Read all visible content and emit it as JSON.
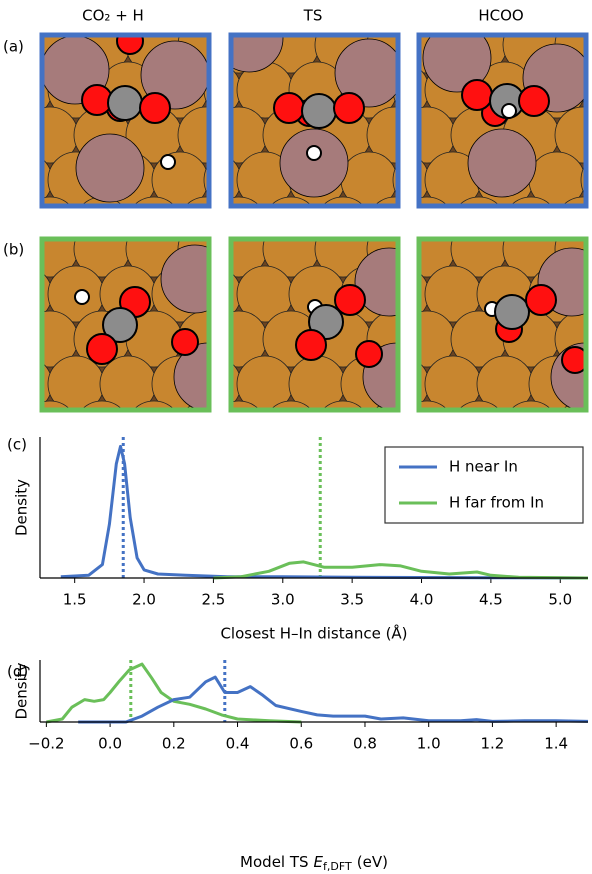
{
  "panels": {
    "columns": [
      "CO₂ + H",
      "TS",
      "HCOO"
    ],
    "rows": [
      "(a)",
      "(b)"
    ]
  },
  "chart_data": [
    {
      "type": "line",
      "panel_label": "(c)",
      "ylabel": "Density",
      "xlabel": "Closest H–In distance (Å)",
      "xlim": [
        1.25,
        5.2
      ],
      "ylim": [
        0,
        1.05
      ],
      "xticks": [
        1.5,
        {
          "value": 2,
          "label": "2.0"
        },
        2.5,
        {
          "value": 3,
          "label": "3.0"
        },
        3.5,
        {
          "value": 4,
          "label": "4.0"
        },
        4.5,
        {
          "value": 5,
          "label": "5.0"
        }
      ],
      "legend": "upper right",
      "series": [
        {
          "name": "H near In",
          "color": "#4472c4",
          "x": [
            1.4,
            1.6,
            1.7,
            1.75,
            1.8,
            1.83,
            1.86,
            1.9,
            1.95,
            2.0,
            2.1,
            2.3,
            2.6,
            3.0,
            3.5,
            4.5,
            5.2
          ],
          "values": [
            0.01,
            0.02,
            0.1,
            0.4,
            0.85,
            0.98,
            0.85,
            0.45,
            0.15,
            0.06,
            0.03,
            0.02,
            0.01,
            0.01,
            0.005,
            0.002,
            0
          ]
        },
        {
          "name": "H far from In",
          "color": "#6abf59",
          "x": [
            2.5,
            2.7,
            2.9,
            3.05,
            3.15,
            3.3,
            3.5,
            3.7,
            3.85,
            4.0,
            4.2,
            4.4,
            4.5,
            4.7,
            5.2
          ],
          "values": [
            0,
            0.01,
            0.05,
            0.11,
            0.12,
            0.08,
            0.08,
            0.1,
            0.09,
            0.05,
            0.03,
            0.045,
            0.02,
            0.005,
            0
          ]
        }
      ],
      "vlines": [
        {
          "x": 1.85,
          "color": "#4472c4"
        },
        {
          "x": 3.27,
          "color": "#6abf59"
        }
      ]
    },
    {
      "type": "line",
      "panel_label": "(d)",
      "ylabel": "Density",
      "xlabel": {
        "text": "Model TS",
        "symbol": "E",
        "subscript": "f,DFT",
        "unit": "(eV)"
      },
      "xlim": [
        -0.22,
        1.5
      ],
      "ylim": [
        0,
        1.05
      ],
      "xticks": [
        {
          "value": -0.2,
          "label": "−0.2"
        },
        {
          "value": 0,
          "label": "0.0"
        },
        0.2,
        0.4,
        0.6,
        0.8,
        {
          "value": 1,
          "label": "1.0"
        },
        1.2,
        1.4
      ],
      "series": [
        {
          "color": "#6abf59",
          "x": [
            -0.2,
            -0.15,
            -0.12,
            -0.08,
            -0.05,
            -0.02,
            0,
            0.03,
            0.06,
            0.1,
            0.13,
            0.16,
            0.2,
            0.25,
            0.3,
            0.35,
            0.4,
            0.5,
            0.6
          ],
          "values": [
            0,
            0.05,
            0.25,
            0.38,
            0.35,
            0.38,
            0.5,
            0.7,
            0.88,
            0.98,
            0.75,
            0.5,
            0.35,
            0.3,
            0.22,
            0.12,
            0.05,
            0.02,
            0
          ]
        },
        {
          "color": "#4472c4",
          "x": [
            -0.1,
            0.05,
            0.1,
            0.15,
            0.2,
            0.25,
            0.3,
            0.33,
            0.36,
            0.4,
            0.44,
            0.48,
            0.52,
            0.6,
            0.65,
            0.7,
            0.8,
            0.85,
            0.92,
            1.0,
            1.1,
            1.15,
            1.2,
            1.3,
            1.4,
            1.5
          ],
          "values": [
            0,
            0,
            0.1,
            0.25,
            0.38,
            0.42,
            0.68,
            0.76,
            0.5,
            0.5,
            0.6,
            0.45,
            0.28,
            0.18,
            0.12,
            0.1,
            0.1,
            0.05,
            0.07,
            0.02,
            0.02,
            0.04,
            0.01,
            0.02,
            0.02,
            0.01
          ]
        }
      ],
      "vlines": [
        {
          "x": 0.065,
          "color": "#6abf59"
        },
        {
          "x": 0.36,
          "color": "#4472c4"
        }
      ]
    }
  ]
}
